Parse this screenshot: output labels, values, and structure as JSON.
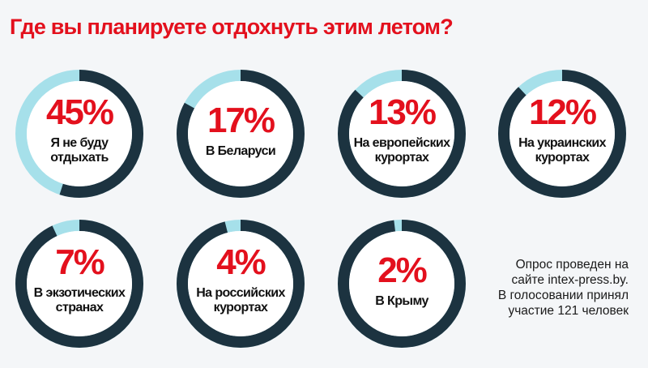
{
  "title": "Где вы планируете отдохнуть этим летом?",
  "note": {
    "lines": [
      "Опрос проведен на",
      "сайте intex-press.by.",
      "В голосовании принял",
      "участие 121 человек"
    ]
  },
  "colors": {
    "title": "#e3101d",
    "ring_filled": "#1c3340",
    "ring_remainder": "#a6e0ea",
    "inner": "#ffffff"
  },
  "chart_data": {
    "type": "donut",
    "title": "Где вы планируете отдохнуть этим летом?",
    "unit": "%",
    "items": [
      {
        "value": 45,
        "label_text": "45%",
        "label": [
          "Я не буду",
          "отдыхать"
        ]
      },
      {
        "value": 17,
        "label_text": "17%",
        "label": [
          "В Беларуси"
        ]
      },
      {
        "value": 13,
        "label_text": "13%",
        "label": [
          "На европейских",
          "курортах"
        ]
      },
      {
        "value": 12,
        "label_text": "12%",
        "label": [
          "На украинских",
          "курортах"
        ]
      },
      {
        "value": 7,
        "label_text": "7%",
        "label": [
          "В экзотических",
          "странах"
        ]
      },
      {
        "value": 4,
        "label_text": "4%",
        "label": [
          "На российских",
          "курортах"
        ]
      },
      {
        "value": 2,
        "label_text": "2%",
        "label": [
          "В Крыму"
        ]
      }
    ]
  }
}
